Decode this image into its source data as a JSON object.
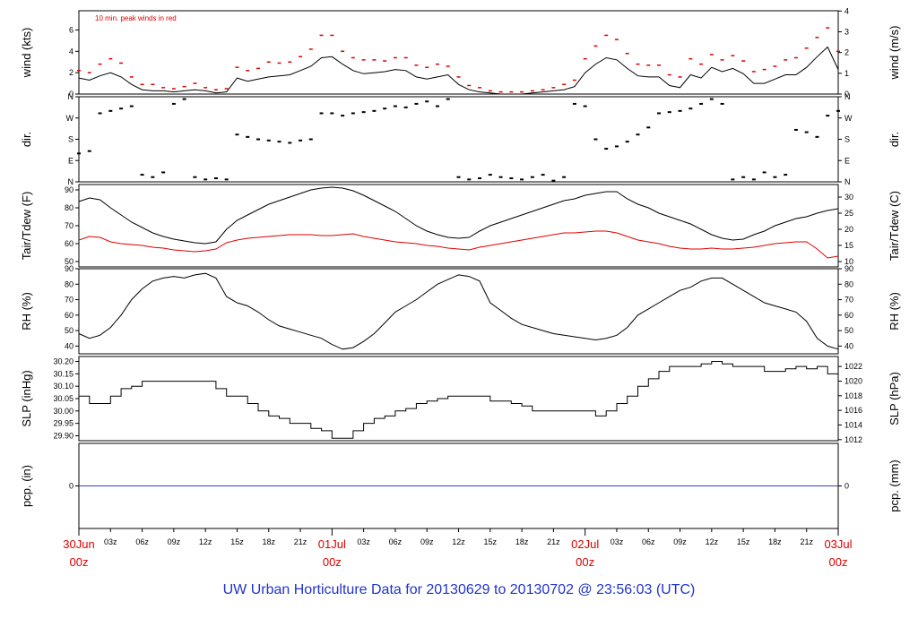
{
  "figure": {
    "caption": "UW Urban Horticulture Data for 20130629  to  20130702 @ 23:56:03  (UTC)",
    "colors": {
      "primary": "#000000",
      "peak": "#dd0000",
      "dew": "#dd0000",
      "precip": "#3344cc",
      "axis_date": "#dd0000",
      "caption": "#2233cc"
    }
  },
  "chart_data": [
    {
      "type": "line",
      "id": "wind",
      "ylabel_left": "wind (kts)",
      "ylabel_right": "wind (m/s)",
      "annotation": "10 min. peak winds in red",
      "ylim": [
        0,
        7.8
      ],
      "ticks_left": [
        0,
        2,
        4,
        6
      ],
      "ticks_right": [
        0,
        1,
        2,
        3,
        4
      ],
      "grid": false,
      "x_hours": [
        0,
        1,
        2,
        3,
        4,
        5,
        6,
        7,
        8,
        9,
        10,
        11,
        12,
        13,
        14,
        15,
        16,
        17,
        18,
        19,
        20,
        21,
        22,
        23,
        24,
        25,
        26,
        27,
        28,
        29,
        30,
        31,
        32,
        33,
        34,
        35,
        36,
        37,
        38,
        39,
        40,
        41,
        42,
        43,
        44,
        45,
        46,
        47,
        48,
        49,
        50,
        51,
        52,
        53,
        54,
        55,
        56,
        57,
        58,
        59,
        60,
        61,
        62,
        63,
        64,
        65,
        66,
        67,
        68,
        69,
        70,
        71,
        72
      ],
      "series": [
        {
          "name": "wind speed",
          "values": [
            1.5,
            1.3,
            1.7,
            2.0,
            1.6,
            0.9,
            0.4,
            0.3,
            0.3,
            0.2,
            0.3,
            0.4,
            0.3,
            0.1,
            0.2,
            1.5,
            1.2,
            1.4,
            1.6,
            1.7,
            1.8,
            2.2,
            2.6,
            3.4,
            3.5,
            2.8,
            2.2,
            1.9,
            2.0,
            2.1,
            2.3,
            2.2,
            1.6,
            1.4,
            1.6,
            1.8,
            0.9,
            0.4,
            0.2,
            0.1,
            0,
            0,
            0,
            0.1,
            0.2,
            0.3,
            0.4,
            0.7,
            2.0,
            2.8,
            3.4,
            3.2,
            2.4,
            1.7,
            1.6,
            1.6,
            0.8,
            0.6,
            1.8,
            1.5,
            2.5,
            2.1,
            2.4,
            1.9,
            1.0,
            1.0,
            1.4,
            1.8,
            1.8,
            2.5,
            3.5,
            4.4,
            2.3
          ]
        },
        {
          "name": "10 min. peak",
          "values": [
            2.2,
            2.0,
            2.8,
            3.3,
            2.9,
            1.6,
            0.9,
            0.9,
            0.6,
            0.5,
            0.7,
            1.0,
            0.6,
            0.4,
            0.5,
            2.5,
            2.2,
            2.4,
            3.0,
            2.9,
            3.0,
            3.5,
            4.2,
            5.5,
            5.5,
            4.0,
            3.4,
            3.2,
            3.2,
            3.1,
            3.4,
            3.4,
            2.7,
            2.5,
            2.8,
            2.6,
            1.6,
            0.8,
            0.6,
            0.3,
            0.2,
            0.2,
            0.2,
            0.3,
            0.4,
            0.6,
            0.9,
            1.3,
            3.3,
            4.5,
            5.5,
            5.1,
            3.8,
            2.8,
            2.7,
            2.7,
            1.8,
            1.6,
            3.3,
            2.8,
            3.7,
            3.2,
            3.6,
            3.1,
            2.1,
            2.3,
            2.6,
            3.2,
            3.4,
            4.3,
            5.3,
            6.2,
            4.0
          ]
        }
      ]
    },
    {
      "type": "scatter",
      "id": "dir",
      "ylabel_left": "dir.",
      "ylabel_right": "dir.",
      "y_categories": [
        "N",
        "E",
        "S",
        "W",
        "N"
      ],
      "ylim": [
        0,
        360
      ],
      "x_hours": [
        0,
        1,
        2,
        3,
        4,
        5,
        6,
        7,
        8,
        9,
        10,
        11,
        12,
        13,
        14,
        15,
        16,
        17,
        18,
        19,
        20,
        21,
        22,
        23,
        24,
        25,
        26,
        27,
        28,
        29,
        30,
        31,
        32,
        33,
        34,
        35,
        36,
        37,
        38,
        39,
        40,
        41,
        42,
        43,
        44,
        45,
        46,
        47,
        48,
        49,
        50,
        51,
        52,
        53,
        54,
        55,
        56,
        57,
        58,
        59,
        60,
        61,
        62,
        63,
        64,
        65,
        66,
        67,
        68,
        69,
        70,
        71,
        72
      ],
      "series": [
        {
          "name": "direction",
          "values": [
            120,
            130,
            290,
            300,
            310,
            320,
            30,
            20,
            40,
            330,
            350,
            20,
            10,
            15,
            10,
            200,
            190,
            180,
            175,
            170,
            165,
            175,
            180,
            290,
            290,
            280,
            290,
            295,
            300,
            310,
            320,
            315,
            330,
            340,
            320,
            350,
            20,
            10,
            15,
            30,
            20,
            15,
            10,
            20,
            30,
            5,
            20,
            330,
            320,
            180,
            140,
            150,
            170,
            200,
            230,
            290,
            295,
            300,
            310,
            330,
            350,
            330,
            10,
            20,
            10,
            40,
            20,
            30,
            220,
            210,
            190,
            280,
            300
          ]
        }
      ]
    },
    {
      "type": "line",
      "id": "temp",
      "ylabel_left": "Tair/Tdew (F)",
      "ylabel_right": "Tair/Tdew (C)",
      "ylim": [
        47,
        93
      ],
      "ticks_left": [
        50,
        60,
        70,
        80,
        90
      ],
      "ticks_right": [
        10,
        15,
        20,
        25,
        30
      ],
      "x_hours": [
        0,
        1,
        2,
        3,
        4,
        5,
        6,
        7,
        8,
        9,
        10,
        11,
        12,
        13,
        14,
        15,
        16,
        17,
        18,
        19,
        20,
        21,
        22,
        23,
        24,
        25,
        26,
        27,
        28,
        29,
        30,
        31,
        32,
        33,
        34,
        35,
        36,
        37,
        38,
        39,
        40,
        41,
        42,
        43,
        44,
        45,
        46,
        47,
        48,
        49,
        50,
        51,
        52,
        53,
        54,
        55,
        56,
        57,
        58,
        59,
        60,
        61,
        62,
        63,
        64,
        65,
        66,
        67,
        68,
        69,
        70,
        71,
        72
      ],
      "series": [
        {
          "name": "Tair",
          "values": [
            83.5,
            85.5,
            84.5,
            80,
            76,
            72,
            69,
            66,
            64,
            62.5,
            61.5,
            60.5,
            60,
            61,
            68,
            73,
            76,
            79,
            82,
            84,
            86,
            88,
            90,
            91,
            91.5,
            91,
            89.5,
            87,
            84,
            81,
            78,
            74,
            70,
            67,
            65,
            63.5,
            63,
            63.5,
            67,
            70,
            72,
            74,
            76,
            78,
            80,
            82,
            84,
            85,
            87,
            88,
            89,
            89,
            85,
            82,
            80,
            77,
            75,
            73,
            71,
            68,
            65,
            63,
            62,
            62.5,
            65,
            67,
            70,
            72,
            74,
            75,
            77,
            78.5,
            79.5
          ]
        },
        {
          "name": "Tdew",
          "values": [
            62,
            64,
            63.5,
            61,
            60,
            59.5,
            59,
            58,
            57.5,
            56.5,
            56,
            55.5,
            56,
            57,
            60.5,
            62,
            63,
            63.5,
            64,
            64.5,
            65,
            65,
            65,
            64.5,
            64.5,
            65,
            65.5,
            64,
            63,
            62,
            61,
            60.5,
            60,
            59,
            58.5,
            57.5,
            57,
            56.5,
            58,
            59,
            60,
            61,
            62,
            63,
            64,
            65,
            66,
            66,
            66.5,
            67,
            67,
            66,
            64,
            62,
            61,
            60,
            58.5,
            57.5,
            57,
            57,
            57.5,
            57,
            57,
            57.5,
            58,
            59,
            60,
            60.5,
            61,
            61,
            57,
            52,
            53
          ]
        }
      ]
    },
    {
      "type": "line",
      "id": "rh",
      "ylabel_left": "RH (%)",
      "ylabel_right": "RH (%)",
      "ylim": [
        35,
        90
      ],
      "ticks_left": [
        40,
        50,
        60,
        70,
        80,
        90
      ],
      "ticks_right": [
        40,
        50,
        60,
        70,
        80,
        90
      ],
      "x_hours": [
        0,
        1,
        2,
        3,
        4,
        5,
        6,
        7,
        8,
        9,
        10,
        11,
        12,
        13,
        14,
        15,
        16,
        17,
        18,
        19,
        20,
        21,
        22,
        23,
        24,
        25,
        26,
        27,
        28,
        29,
        30,
        31,
        32,
        33,
        34,
        35,
        36,
        37,
        38,
        39,
        40,
        41,
        42,
        43,
        44,
        45,
        46,
        47,
        48,
        49,
        50,
        51,
        52,
        53,
        54,
        55,
        56,
        57,
        58,
        59,
        60,
        61,
        62,
        63,
        64,
        65,
        66,
        67,
        68,
        69,
        70,
        71,
        72
      ],
      "series": [
        {
          "name": "RH",
          "values": [
            48,
            45,
            47,
            52,
            60,
            70,
            77,
            82,
            84,
            85,
            84,
            86,
            87,
            84,
            72,
            68,
            66,
            62,
            57,
            53,
            51,
            49,
            47,
            45,
            41,
            38,
            39,
            43,
            48,
            55,
            62,
            66,
            70,
            75,
            80,
            83,
            86,
            85,
            82,
            68,
            63,
            58,
            54,
            52,
            50,
            48,
            47,
            46,
            45,
            44,
            45,
            47,
            52,
            60,
            64,
            68,
            72,
            76,
            78,
            82,
            84,
            84,
            80,
            76,
            72,
            68,
            66,
            64,
            62,
            56,
            45,
            40,
            38
          ]
        }
      ]
    },
    {
      "type": "line",
      "id": "slp",
      "ylabel_left": "SLP (inHg)",
      "ylabel_right": "SLP (hPa)",
      "ylim": [
        29.88,
        30.22
      ],
      "ticks_left": [
        "30.20",
        "30.15",
        "30.10",
        "30.05",
        "30.00",
        "29.95",
        "29.90"
      ],
      "ticks_left_values": [
        30.2,
        30.15,
        30.1,
        30.05,
        30.0,
        29.95,
        29.9
      ],
      "ticks_right": [
        1012,
        1014,
        1016,
        1018,
        1020,
        1022
      ],
      "x_hours": [
        0,
        1,
        2,
        3,
        4,
        5,
        6,
        7,
        8,
        9,
        10,
        11,
        12,
        13,
        14,
        15,
        16,
        17,
        18,
        19,
        20,
        21,
        22,
        23,
        24,
        25,
        26,
        27,
        28,
        29,
        30,
        31,
        32,
        33,
        34,
        35,
        36,
        37,
        38,
        39,
        40,
        41,
        42,
        43,
        44,
        45,
        46,
        47,
        48,
        49,
        50,
        51,
        52,
        53,
        54,
        55,
        56,
        57,
        58,
        59,
        60,
        61,
        62,
        63,
        64,
        65,
        66,
        67,
        68,
        69,
        70,
        71,
        72
      ],
      "series": [
        {
          "name": "SLP",
          "values": [
            30.06,
            30.03,
            30.03,
            30.06,
            30.09,
            30.1,
            30.12,
            30.12,
            30.12,
            30.12,
            30.12,
            30.12,
            30.12,
            30.09,
            30.06,
            30.06,
            30.03,
            30.0,
            29.98,
            29.97,
            29.95,
            29.95,
            29.93,
            29.92,
            29.89,
            29.89,
            29.92,
            29.95,
            29.97,
            29.98,
            30.0,
            30.01,
            30.03,
            30.04,
            30.05,
            30.06,
            30.06,
            30.06,
            30.06,
            30.04,
            30.04,
            30.03,
            30.02,
            30.0,
            30.0,
            30.0,
            30.0,
            30.0,
            30.0,
            29.98,
            30.0,
            30.03,
            30.06,
            30.1,
            30.13,
            30.16,
            30.18,
            30.18,
            30.18,
            30.19,
            30.2,
            30.19,
            30.18,
            30.18,
            30.18,
            30.16,
            30.16,
            30.17,
            30.18,
            30.17,
            30.18,
            30.15,
            30.15
          ]
        }
      ]
    },
    {
      "type": "line",
      "id": "pcp",
      "ylabel_left": "pcp. (in)",
      "ylabel_right": "pcp. (mm)",
      "ylim": [
        -1,
        1
      ],
      "ticks_left": [
        0
      ],
      "ticks_right": [
        0
      ],
      "x_hours": [
        0,
        72
      ],
      "series": [
        {
          "name": "precip",
          "values": [
            0,
            0
          ]
        }
      ]
    }
  ],
  "x_axis": {
    "range_hours": [
      0,
      72
    ],
    "hour_ticks": [
      "03z",
      "06z",
      "09z",
      "12z",
      "15z",
      "18z",
      "21z",
      "03z",
      "06z",
      "09z",
      "12z",
      "15z",
      "18z",
      "21z",
      "03z",
      "06z",
      "09z",
      "12z",
      "15z",
      "18z",
      "21z"
    ],
    "hour_tick_hours": [
      3,
      6,
      9,
      12,
      15,
      18,
      21,
      27,
      30,
      33,
      36,
      39,
      42,
      45,
      51,
      54,
      57,
      60,
      63,
      66,
      69
    ],
    "day_ticks": [
      {
        "hour": 0,
        "date": "30Jun",
        "time": "00z"
      },
      {
        "hour": 24,
        "date": "01Jul",
        "time": "00z"
      },
      {
        "hour": 48,
        "date": "02Jul",
        "time": "00z"
      },
      {
        "hour": 72,
        "date": "03Jul",
        "time": "00z"
      }
    ]
  }
}
